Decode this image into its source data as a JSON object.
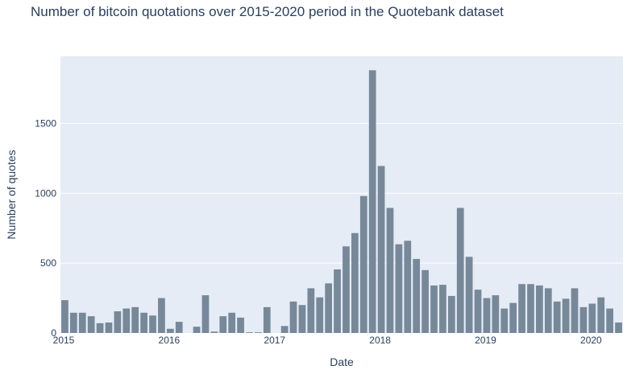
{
  "chart_data": {
    "type": "bar",
    "title": "Number of bitcoin quotations over 2015-2020 period in the Quotebank dataset",
    "xlabel": "Date",
    "ylabel": "Number of quotes",
    "x_start": "2015-01",
    "x_ticks": [
      {
        "label": "2015",
        "date": "2015-01"
      },
      {
        "label": "2016",
        "date": "2016-01"
      },
      {
        "label": "2017",
        "date": "2017-01"
      },
      {
        "label": "2018",
        "date": "2018-01"
      },
      {
        "label": "2019",
        "date": "2019-01"
      },
      {
        "label": "2020",
        "date": "2020-01"
      }
    ],
    "ylim": [
      0,
      1980
    ],
    "y_ticks": [
      0,
      500,
      1000,
      1500
    ],
    "grid": true,
    "colors": {
      "bar": "#778899",
      "plot_bg": "#e5ecf6",
      "grid": "#ffffff",
      "text": "#2a3f5f"
    },
    "series": [
      {
        "months": [
          "2015-01",
          "2015-02",
          "2015-03",
          "2015-04",
          "2015-05",
          "2015-06",
          "2015-07",
          "2015-08",
          "2015-09",
          "2015-10",
          "2015-11",
          "2015-12",
          "2016-01",
          "2016-02",
          "2016-03",
          "2016-04",
          "2016-05",
          "2016-06",
          "2016-07",
          "2016-08",
          "2016-09",
          "2016-10",
          "2016-11",
          "2016-12",
          "2017-01",
          "2017-02",
          "2017-03",
          "2017-04",
          "2017-05",
          "2017-06",
          "2017-07",
          "2017-08",
          "2017-09",
          "2017-10",
          "2017-11",
          "2017-12",
          "2018-01",
          "2018-02",
          "2018-03",
          "2018-04",
          "2018-05",
          "2018-06",
          "2018-07",
          "2018-08",
          "2018-09",
          "2018-10",
          "2018-11",
          "2018-12",
          "2019-01",
          "2019-02",
          "2019-03",
          "2019-04",
          "2019-05",
          "2019-06",
          "2019-07",
          "2019-08",
          "2019-09",
          "2019-10",
          "2019-11",
          "2019-12",
          "2020-01",
          "2020-02",
          "2020-03",
          "2020-04"
        ],
        "values": [
          235,
          145,
          145,
          120,
          70,
          75,
          155,
          175,
          185,
          145,
          125,
          250,
          30,
          80,
          0,
          45,
          270,
          10,
          120,
          145,
          110,
          5,
          5,
          185,
          0,
          50,
          225,
          200,
          320,
          255,
          355,
          455,
          620,
          715,
          980,
          1880,
          1195,
          895,
          635,
          660,
          530,
          450,
          340,
          345,
          265,
          895,
          545,
          310,
          250,
          270,
          175,
          215,
          350,
          350,
          340,
          320,
          225,
          245,
          320,
          185,
          210,
          255,
          175,
          75
        ]
      }
    ]
  }
}
